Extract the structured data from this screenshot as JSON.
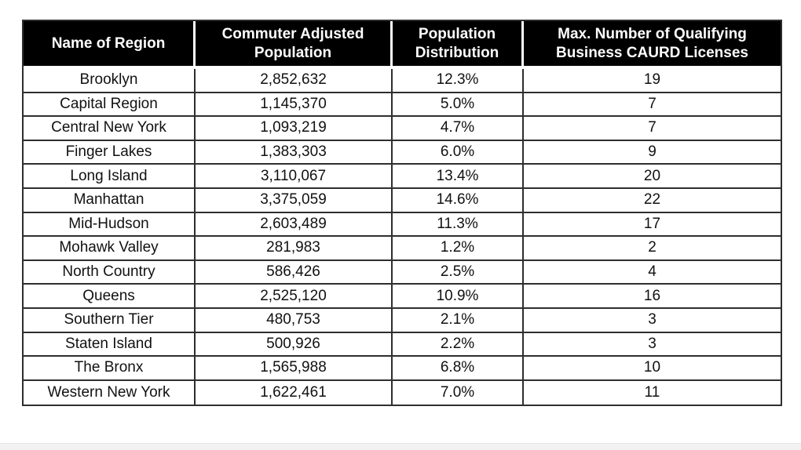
{
  "table": {
    "columns": [
      "Name of Region",
      "Commuter Adjusted Population",
      "Population Distribution",
      "Max. Number of Qualifying Business CAURD Licenses"
    ],
    "rows": [
      [
        "Brooklyn",
        "2,852,632",
        "12.3%",
        "19"
      ],
      [
        "Capital Region",
        "1,145,370",
        "5.0%",
        "7"
      ],
      [
        "Central New York",
        "1,093,219",
        "4.7%",
        "7"
      ],
      [
        "Finger Lakes",
        "1,383,303",
        "6.0%",
        "9"
      ],
      [
        "Long Island",
        "3,110,067",
        "13.4%",
        "20"
      ],
      [
        "Manhattan",
        "3,375,059",
        "14.6%",
        "22"
      ],
      [
        "Mid-Hudson",
        "2,603,489",
        "11.3%",
        "17"
      ],
      [
        "Mohawk Valley",
        "281,983",
        "1.2%",
        "2"
      ],
      [
        "North Country",
        "586,426",
        "2.5%",
        "4"
      ],
      [
        "Queens",
        "2,525,120",
        "10.9%",
        "16"
      ],
      [
        "Southern Tier",
        "480,753",
        "2.1%",
        "3"
      ],
      [
        "Staten Island",
        "500,926",
        "2.2%",
        "3"
      ],
      [
        "The Bronx",
        "1,565,988",
        "6.8%",
        "10"
      ],
      [
        "Western New York",
        "1,622,461",
        "7.0%",
        "11"
      ]
    ]
  },
  "colors": {
    "header_background": "#000000",
    "header_text": "#ffffff",
    "cell_text": "#111111",
    "grid_border": "#2e2e2e",
    "page_background": "#ffffff"
  },
  "chart_data": {
    "type": "table",
    "title": "",
    "columns": [
      "Name of Region",
      "Commuter Adjusted Population",
      "Population Distribution",
      "Max. Number of Qualifying Business CAURD Licenses"
    ],
    "rows": [
      [
        "Brooklyn",
        "2,852,632",
        "12.3%",
        "19"
      ],
      [
        "Capital Region",
        "1,145,370",
        "5.0%",
        "7"
      ],
      [
        "Central New York",
        "1,093,219",
        "4.7%",
        "7"
      ],
      [
        "Finger Lakes",
        "1,383,303",
        "6.0%",
        "9"
      ],
      [
        "Long Island",
        "3,110,067",
        "13.4%",
        "20"
      ],
      [
        "Manhattan",
        "3,375,059",
        "14.6%",
        "22"
      ],
      [
        "Mid-Hudson",
        "2,603,489",
        "11.3%",
        "17"
      ],
      [
        "Mohawk Valley",
        "281,983",
        "1.2%",
        "2"
      ],
      [
        "North Country",
        "586,426",
        "2.5%",
        "4"
      ],
      [
        "Queens",
        "2,525,120",
        "10.9%",
        "16"
      ],
      [
        "Southern Tier",
        "480,753",
        "2.1%",
        "3"
      ],
      [
        "Staten Island",
        "500,926",
        "2.2%",
        "3"
      ],
      [
        "The Bronx",
        "1,565,988",
        "6.8%",
        "10"
      ],
      [
        "Western New York",
        "1,622,461",
        "7.0%",
        "11"
      ]
    ]
  }
}
